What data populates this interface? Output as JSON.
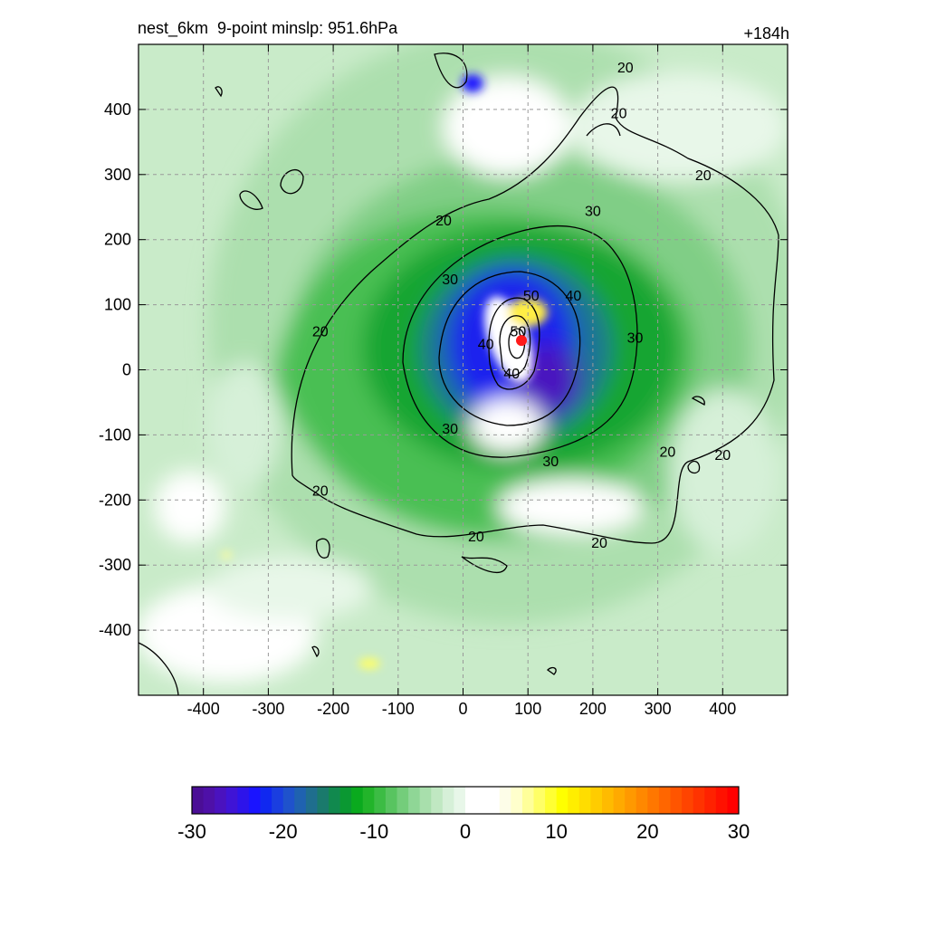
{
  "title": "nest_6km  9-point minslp: 951.6hPa",
  "forecast_hour": "+184h",
  "chart_data": {
    "type": "heatmap",
    "title": "nest_6km  9-point minslp: 951.6hPa",
    "annotation_right": "+184h",
    "xlabel": "",
    "ylabel": "",
    "xlim": [
      -500,
      500
    ],
    "ylim": [
      -500,
      500
    ],
    "x_ticks": [
      -400,
      -300,
      -200,
      -100,
      0,
      100,
      200,
      300,
      400
    ],
    "y_ticks": [
      400,
      300,
      200,
      100,
      0,
      -100,
      -200,
      -300,
      -400
    ],
    "grid": true,
    "storm_center": {
      "x": 90,
      "y": 45,
      "color": "#ff1a1a"
    },
    "contours": [
      {
        "level": 20,
        "label_positions": [
          [
            -220,
            -185
          ],
          [
            20,
            -255
          ],
          [
            -220,
            60
          ],
          [
            -30,
            230
          ],
          [
            210,
            -265
          ],
          [
            315,
            -125
          ],
          [
            400,
            -130
          ],
          [
            250,
            465
          ],
          [
            240,
            395
          ],
          [
            370,
            300
          ]
        ]
      },
      {
        "level": 30,
        "label_positions": [
          [
            -20,
            140
          ],
          [
            -20,
            -90
          ],
          [
            135,
            -140
          ],
          [
            265,
            50
          ],
          [
            200,
            245
          ]
        ]
      },
      {
        "level": 40,
        "label_positions": [
          [
            35,
            40
          ],
          [
            170,
            115
          ],
          [
            75,
            -5
          ]
        ]
      },
      {
        "level": 50,
        "label_positions": [
          [
            105,
            115
          ],
          [
            85,
            60
          ]
        ]
      }
    ],
    "colorbar": {
      "min": -30,
      "max": 30,
      "tick_values": [
        -30,
        -20,
        -10,
        0,
        10,
        20,
        30
      ],
      "tick_labels": [
        "-30",
        "-20",
        "-10",
        "0",
        "10",
        "20",
        "30"
      ],
      "colors": [
        "#4b0e96",
        "#4e10a8",
        "#4a12bf",
        "#3f14d6",
        "#2d14ea",
        "#1a14ff",
        "#1028f0",
        "#1a3ee0",
        "#1f52cc",
        "#1f62b0",
        "#1f6e8e",
        "#1a7a6c",
        "#11894e",
        "#0a9832",
        "#0aaa1e",
        "#22b42a",
        "#3cbc44",
        "#58c460",
        "#74cd7b",
        "#8fd696",
        "#a8dfac",
        "#c0e8c2",
        "#d6f0d8",
        "#e8f7e9",
        "#ffffff",
        "#ffffff",
        "#ffffff",
        "#fdfde8",
        "#ffffcc",
        "#ffff9a",
        "#ffff66",
        "#ffff33",
        "#ffff00",
        "#ffee00",
        "#ffdd00",
        "#ffcc00",
        "#ffbb00",
        "#ffaa00",
        "#ff9900",
        "#ff8800",
        "#ff7700",
        "#ff6600",
        "#ff5500",
        "#ff4400",
        "#ff3300",
        "#ff2200",
        "#ff1100",
        "#ff0000"
      ]
    }
  }
}
